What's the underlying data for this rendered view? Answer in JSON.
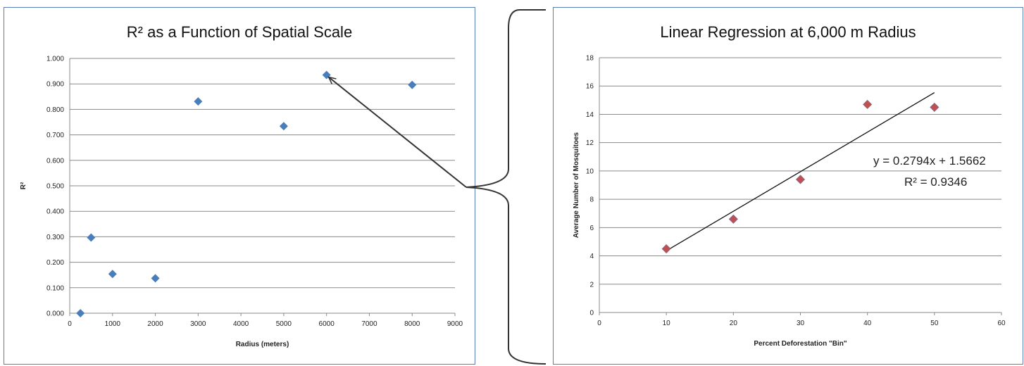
{
  "chart_data": [
    {
      "type": "scatter",
      "title": "R² as a Function of Spatial Scale",
      "xlabel": "Radius (meters)",
      "ylabel": "R²",
      "xlim": [
        0,
        9000
      ],
      "ylim": [
        0,
        1
      ],
      "x_ticks": [
        "0",
        "1000",
        "2000",
        "3000",
        "4000",
        "5000",
        "6000",
        "7000",
        "8000",
        "9000"
      ],
      "y_ticks": [
        "0.000",
        "0.100",
        "0.200",
        "0.300",
        "0.400",
        "0.500",
        "0.600",
        "0.700",
        "0.800",
        "0.900",
        "1.000"
      ],
      "grid": "horizontal",
      "marker_color": "#4a7ebb",
      "series": [
        {
          "x": [
            250,
            500,
            1000,
            2000,
            3000,
            5000,
            6000,
            8000
          ],
          "y": [
            0.0,
            0.297,
            0.154,
            0.137,
            0.831,
            0.734,
            0.935,
            0.896
          ]
        }
      ]
    },
    {
      "type": "scatter",
      "title": "Linear Regression at 6,000  m Radius",
      "xlabel": "Percent Deforestation \"Bin\"",
      "ylabel": "Average Number of Mosquitoes",
      "xlim": [
        0,
        60
      ],
      "ylim": [
        0,
        18
      ],
      "x_ticks": [
        "0",
        "10",
        "20",
        "30",
        "40",
        "50",
        "60"
      ],
      "y_ticks": [
        "0",
        "2",
        "4",
        "6",
        "8",
        "10",
        "12",
        "14",
        "16",
        "18"
      ],
      "grid": "horizontal",
      "marker_color": "#c0504d",
      "series": [
        {
          "x": [
            10,
            20,
            30,
            40,
            50
          ],
          "y": [
            4.5,
            6.6,
            9.4,
            14.7,
            14.5
          ]
        }
      ],
      "trendline": {
        "slope": 0.2794,
        "intercept": 1.5662,
        "x_range": [
          10,
          50
        ]
      },
      "equation_text": "y = 0.2794x + 1.5662",
      "r2_text": "R² = 0.9346"
    }
  ]
}
